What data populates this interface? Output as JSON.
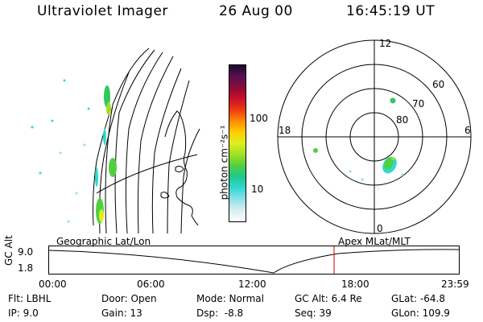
{
  "header": {
    "instrument": "Ultraviolet Imager",
    "date": "26 Aug 00",
    "time": "16:45:19 UT"
  },
  "colorbar": {
    "label": "photon cm⁻²s⁻¹",
    "ticks": [
      "100",
      "10"
    ],
    "scale": "log",
    "colors": [
      "#1b0a2e",
      "#5a1050",
      "#8a0a3a",
      "#c8102a",
      "#ee3a10",
      "#ff8a00",
      "#ffcc00",
      "#dfee20",
      "#a0e020",
      "#50d040",
      "#20c890",
      "#30d8d0",
      "#90e0e8",
      "#d8eef0",
      "#ffffff"
    ]
  },
  "polar_plot": {
    "mlt_labels": [
      "12",
      "18",
      "6",
      "0"
    ],
    "lat_labels": [
      "60",
      "70",
      "80"
    ]
  },
  "geo_map": {
    "title": "Geographic Lat/Lon"
  },
  "altitude_panel": {
    "ylabel": "GC Alt",
    "yticks": [
      "9.0",
      "1.8"
    ],
    "xticks": [
      "00:00",
      "06:00",
      "12:00",
      "18:00",
      "23:59"
    ],
    "left_title": "Geographic Lat/Lon",
    "right_title": "Apex MLat/MLT",
    "marker_color": "#cc0000"
  },
  "info": {
    "filter": "Flt: LBHL",
    "door": "Door: Open",
    "mode": "Mode: Normal",
    "gc_alt": "GC Alt: 6.4 Re",
    "glat": "GLat: -64.8",
    "ip": "IP: 9.0",
    "gain": "Gain: 13",
    "dsp": "Dsp:  -8.8",
    "seq": "Seq: 39",
    "glon": "GLon: 109.9"
  }
}
